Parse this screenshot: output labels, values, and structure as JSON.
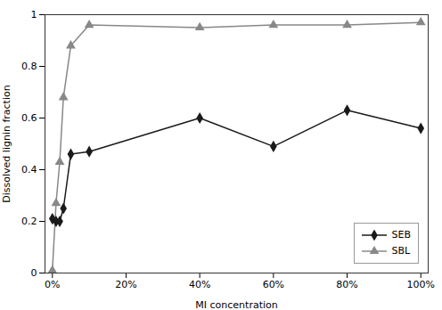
{
  "chart_data": {
    "type": "line",
    "x_label": "MI concentration",
    "y_label": "Dissolved lignin fraction",
    "xlim": [
      -2,
      102
    ],
    "ylim": [
      0,
      1.0
    ],
    "xticks": [
      {
        "value": 0,
        "label": "0%"
      },
      {
        "value": 20,
        "label": "20%"
      },
      {
        "value": 40,
        "label": "40%"
      },
      {
        "value": 60,
        "label": "60%"
      },
      {
        "value": 80,
        "label": "80%"
      },
      {
        "value": 100,
        "label": "100%"
      }
    ],
    "yticks": [
      0,
      0.2,
      0.4,
      0.6,
      0.8,
      1
    ],
    "grid": false,
    "legend": "lower right",
    "series": [
      {
        "name": "SEB",
        "color": "#1a1a1a",
        "marker": "diamond",
        "x": [
          0,
          1,
          2,
          3,
          5,
          10,
          40,
          60,
          80,
          100
        ],
        "values": [
          0.21,
          0.2,
          0.2,
          0.25,
          0.46,
          0.47,
          0.6,
          0.49,
          0.63,
          0.56
        ]
      },
      {
        "name": "SBL",
        "color": "#888888",
        "marker": "triangle",
        "x": [
          0,
          1,
          2,
          3,
          5,
          10,
          40,
          60,
          80,
          100
        ],
        "values": [
          0.01,
          0.27,
          0.43,
          0.68,
          0.88,
          0.96,
          0.95,
          0.96,
          0.96,
          0.97
        ]
      }
    ]
  }
}
